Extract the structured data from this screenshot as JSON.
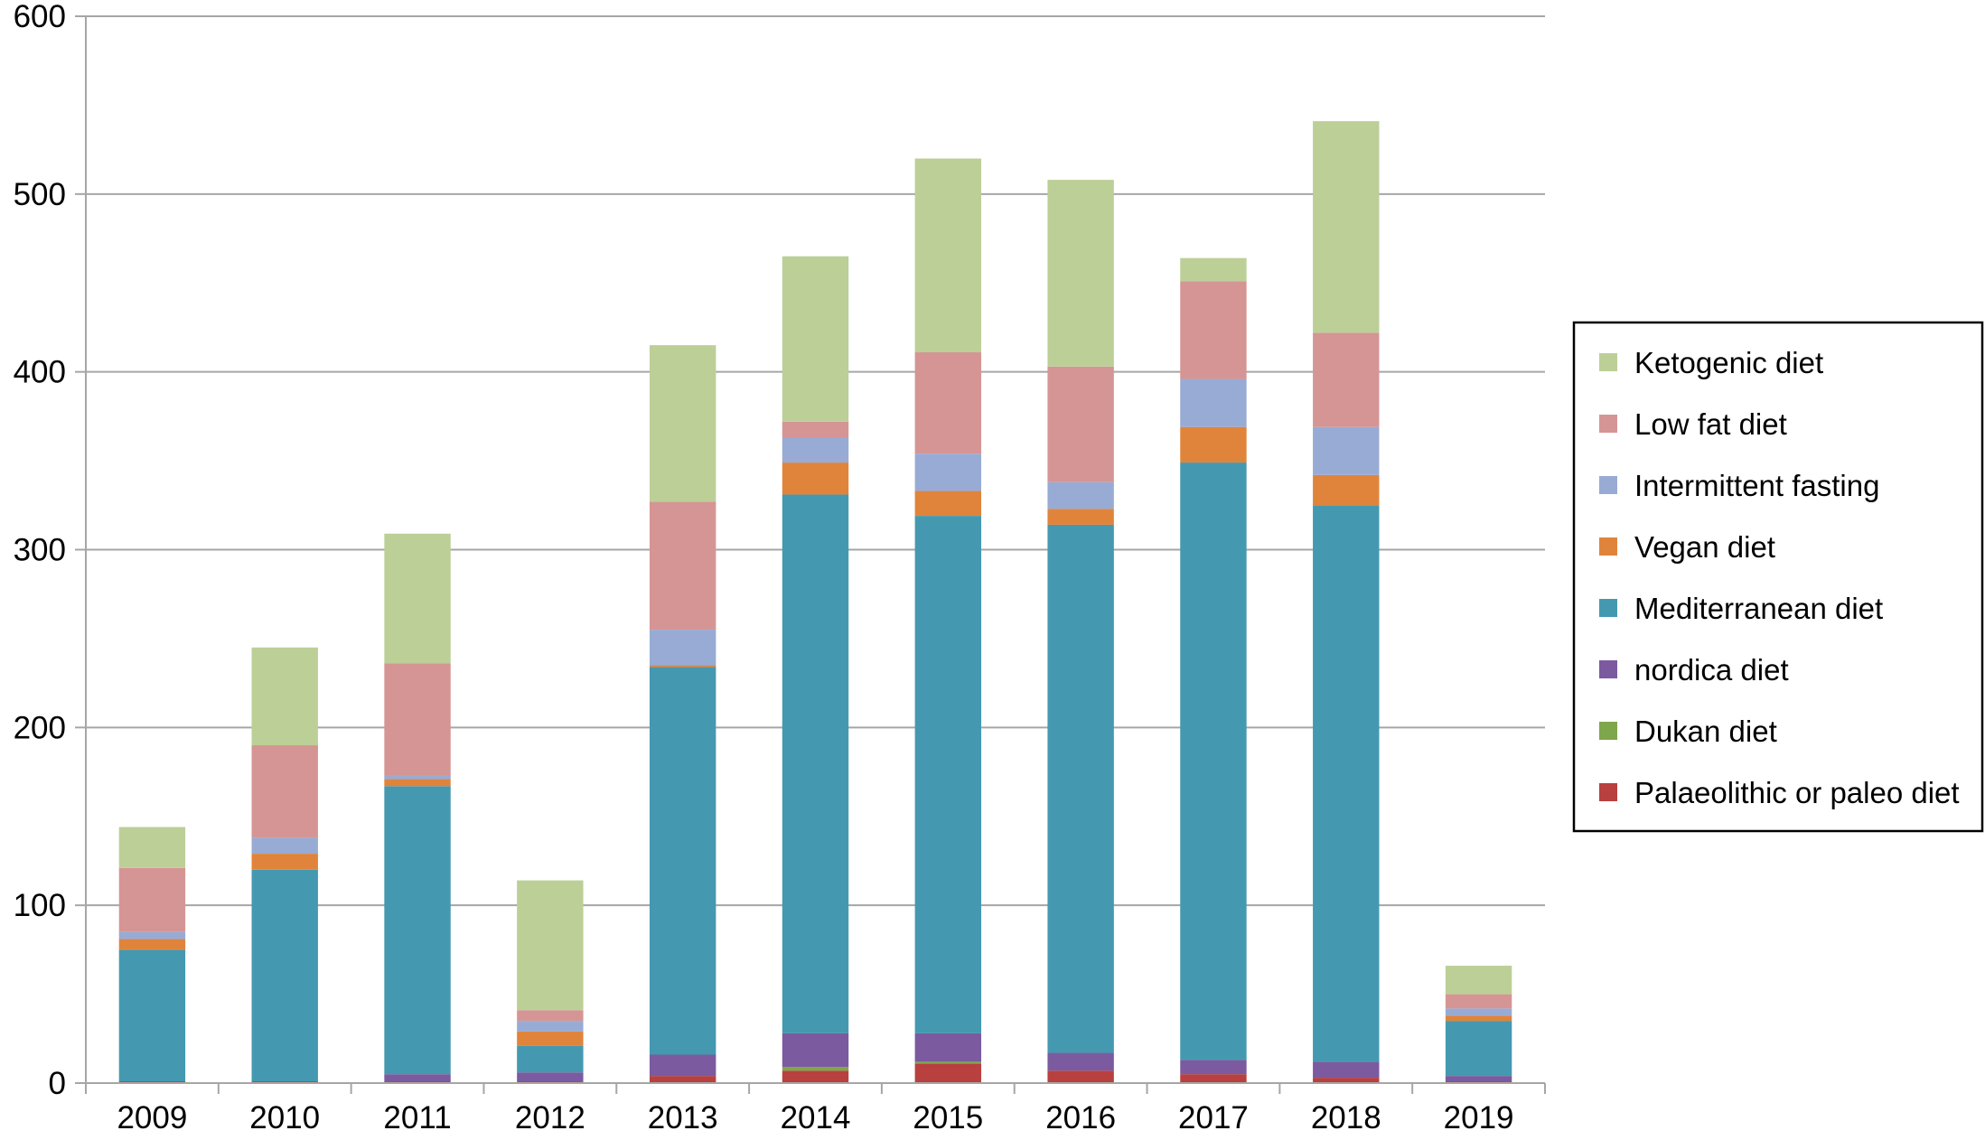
{
  "chart_data": {
    "type": "bar",
    "stacked": true,
    "categories": [
      "2009",
      "2010",
      "2011",
      "2012",
      "2013",
      "2014",
      "2015",
      "2016",
      "2017",
      "2018",
      "2019"
    ],
    "ylim": [
      0,
      600
    ],
    "yticks": [
      "0",
      "100",
      "200",
      "300",
      "400",
      "500",
      "600"
    ],
    "grid": true,
    "legend_position": "right",
    "series": [
      {
        "name": "Palaeolithic or paleo diet",
        "color": "#b8403f",
        "values": [
          1,
          1,
          1,
          1,
          4,
          7,
          11,
          7,
          5,
          3,
          1
        ]
      },
      {
        "name": "Dukan diet",
        "color": "#7ea64a",
        "values": [
          0,
          0,
          0,
          0,
          0,
          2,
          1,
          0,
          0,
          0,
          0
        ]
      },
      {
        "name": "nordica diet",
        "color": "#7b5aa0",
        "values": [
          0,
          0,
          4,
          5,
          12,
          19,
          16,
          10,
          8,
          9,
          3
        ]
      },
      {
        "name": "Mediterranean diet",
        "color": "#4499b0",
        "values": [
          74,
          119,
          162,
          15,
          218,
          303,
          291,
          297,
          336,
          313,
          31
        ]
      },
      {
        "name": "Vegan diet",
        "color": "#e0843c",
        "values": [
          6,
          9,
          4,
          8,
          1,
          18,
          14,
          9,
          20,
          17,
          3
        ]
      },
      {
        "name": "Intermittent fasting",
        "color": "#98abd4",
        "values": [
          4,
          9,
          2,
          6,
          20,
          14,
          21,
          15,
          27,
          27,
          4
        ]
      },
      {
        "name": "Low fat diet",
        "color": "#d59594",
        "values": [
          36,
          52,
          63,
          6,
          72,
          9,
          57,
          65,
          55,
          53,
          8
        ]
      },
      {
        "name": "Ketogenic diet",
        "color": "#bccf97",
        "values": [
          23,
          55,
          73,
          73,
          88,
          93,
          109,
          105,
          13,
          119,
          16
        ]
      }
    ]
  }
}
